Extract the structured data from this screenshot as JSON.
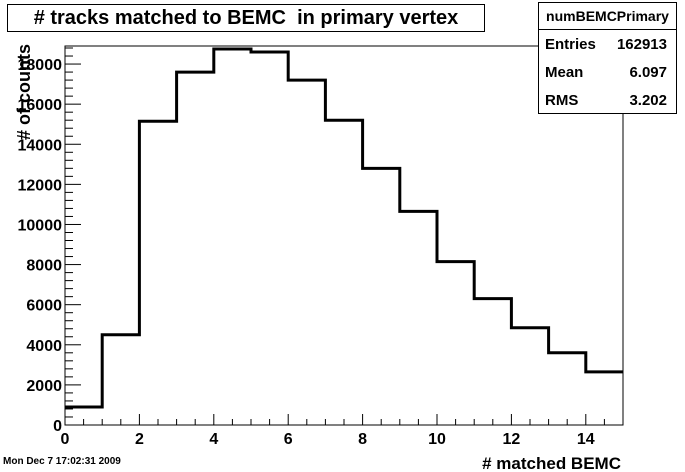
{
  "chart_data": {
    "type": "histogram",
    "title": "# tracks matched to BEMC  in primary vertex",
    "xlabel": "# matched BEMC",
    "ylabel": "# of counts",
    "xlim": [
      0,
      15
    ],
    "ylim": [
      0,
      18900
    ],
    "bin_edges": [
      0,
      1,
      2,
      3,
      4,
      5,
      6,
      7,
      8,
      9,
      10,
      11,
      12,
      13,
      14,
      15
    ],
    "values": [
      900,
      4500,
      15150,
      17600,
      18750,
      18600,
      17200,
      15200,
      12800,
      10650,
      8150,
      6300,
      4850,
      3600,
      2650
    ],
    "x_ticks": [
      "0",
      "2",
      "4",
      "6",
      "8",
      "10",
      "12",
      "14"
    ],
    "y_ticks": [
      "0",
      "2000",
      "4000",
      "6000",
      "8000",
      "10000",
      "12000",
      "14000",
      "16000",
      "18000"
    ],
    "grid": false,
    "line_color": "#000000"
  },
  "stats": {
    "name": "numBEMCPrimary",
    "rows": [
      {
        "label": "Entries",
        "value": "162913"
      },
      {
        "label": "Mean",
        "value": "6.097"
      },
      {
        "label": "RMS",
        "value": "3.202"
      }
    ]
  },
  "timestamp": "Mon Dec  7 17:02:31 2009"
}
